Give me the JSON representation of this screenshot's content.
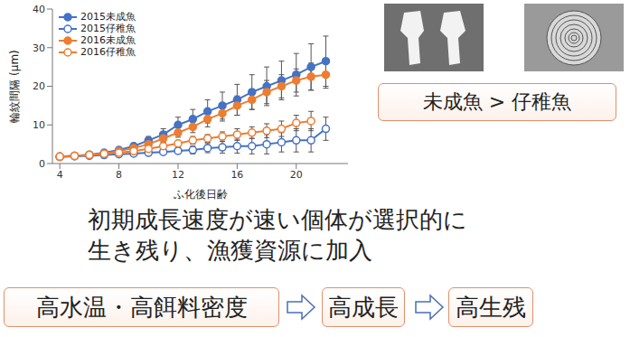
{
  "chart_data": {
    "type": "line",
    "x_label": "ふ化後日齢",
    "y_label": "輪紋間隔 (µm)",
    "x": [
      4,
      5,
      6,
      7,
      8,
      9,
      10,
      11,
      12,
      13,
      14,
      15,
      16,
      17,
      18,
      19,
      20,
      21,
      22
    ],
    "xlim": [
      3.5,
      23.5
    ],
    "xticks": [
      4,
      8,
      12,
      16,
      20
    ],
    "ylim": [
      0,
      40
    ],
    "yticks": [
      0,
      10,
      20,
      30,
      40
    ],
    "grid": false,
    "legend": "upper left",
    "series": [
      {
        "name": "2015未成魚",
        "color": "#4472c4",
        "marker": "circle",
        "line_style": "solid",
        "values": [
          1.8,
          2,
          2.3,
          2.8,
          3.5,
          4.5,
          6,
          7.5,
          10,
          11.5,
          13.5,
          15,
          16.5,
          18.5,
          20,
          21.5,
          23,
          25,
          26.5
        ],
        "errors": [
          0.3,
          0.3,
          0.4,
          0.5,
          0.6,
          0.8,
          1,
          1.5,
          2,
          2.5,
          3,
          3.5,
          4,
          4.5,
          5,
          5,
          5.5,
          6,
          6.5
        ]
      },
      {
        "name": "2015仔稚魚",
        "color": "#4472c4",
        "marker": "open_circle",
        "line_style": "solid",
        "values": [
          1.7,
          1.9,
          2,
          2.2,
          2.4,
          2.6,
          2.8,
          3,
          3.3,
          3.5,
          4,
          4.2,
          4.5,
          4.5,
          5,
          5.5,
          6,
          6,
          9
        ],
        "errors": [
          0.2,
          0.2,
          0.2,
          0.3,
          0.3,
          0.4,
          0.5,
          0.6,
          0.8,
          1,
          1.2,
          1.5,
          1.8,
          2,
          2.5,
          2.5,
          3,
          3,
          3
        ]
      },
      {
        "name": "2016未成魚",
        "color": "#ed7d31",
        "marker": "circle",
        "line_style": "solid",
        "values": [
          1.8,
          2,
          2.2,
          2.6,
          3.2,
          4,
          5,
          6.5,
          8,
          9.5,
          11.5,
          13,
          15,
          16.5,
          18.5,
          20,
          21.5,
          22.5,
          23
        ],
        "errors": [
          0.3,
          0.3,
          0.3,
          0.4,
          0.5,
          0.6,
          0.8,
          1,
          1.2,
          1.5,
          2,
          2,
          2.5,
          2.5,
          3,
          3,
          3,
          3.5,
          3.5
        ]
      },
      {
        "name": "2016仔稚魚",
        "color": "#ed7d31",
        "marker": "open_circle",
        "line_style": "solid",
        "values": [
          1.8,
          2,
          2.2,
          2.5,
          2.8,
          3.2,
          3.8,
          4.5,
          5.2,
          6,
          6.5,
          7,
          7.5,
          8,
          8.5,
          9,
          10.5,
          11,
          null
        ],
        "errors": [
          0.2,
          0.2,
          0.2,
          0.3,
          0.3,
          0.4,
          0.5,
          0.6,
          0.8,
          1,
          1,
          1.2,
          1.5,
          1.5,
          1.8,
          2,
          2,
          2.5,
          null
        ]
      }
    ]
  },
  "comparison_box": "未成魚 > 仔稚魚",
  "conclusion": [
    "初期成長速度が速い個体が選択的に",
    "生き残り、漁獲資源に加入"
  ],
  "flow": [
    "高水温・高餌料密度",
    "高成長",
    "高生残"
  ]
}
